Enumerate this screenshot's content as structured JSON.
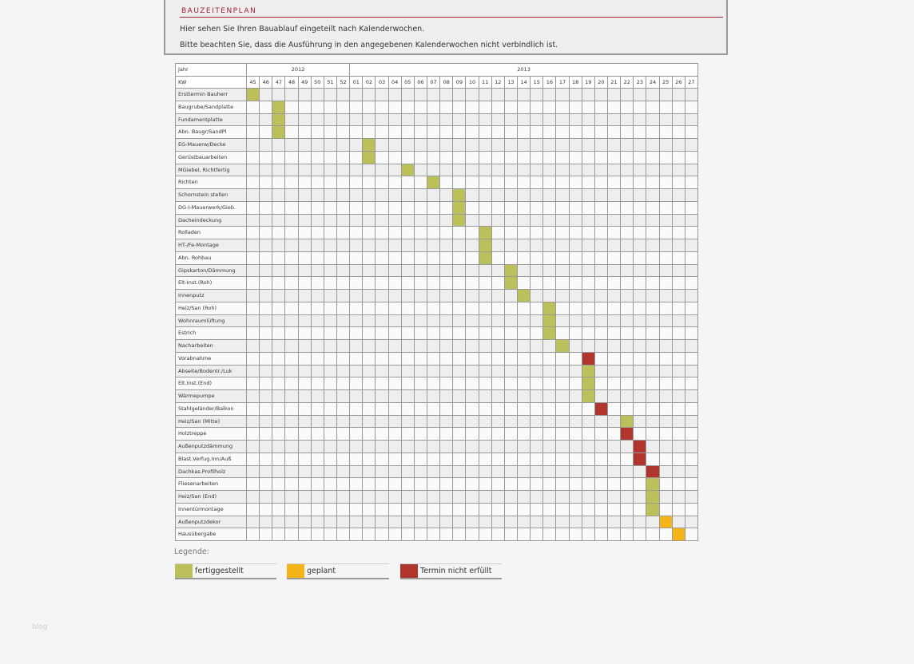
{
  "header": {
    "title": "BAUZEITENPLAN",
    "paragraphs": [
      "Hier sehen Sie Ihren Bauablauf eingeteilt nach Kalenderwochen.",
      "Bitte beachten Sie, dass die Ausführung in den angegebenen Kalenderwochen nicht verbindlich ist."
    ]
  },
  "table": {
    "corner_year": "Jahr",
    "corner_week": "KW",
    "years": [
      {
        "label": "2012",
        "weeks": [
          "45",
          "46",
          "47",
          "48",
          "49",
          "50",
          "51",
          "52"
        ]
      },
      {
        "label": "2013",
        "weeks": [
          "01",
          "02",
          "03",
          "04",
          "05",
          "06",
          "07",
          "08",
          "09",
          "10",
          "11",
          "12",
          "13",
          "14",
          "15",
          "16",
          "17",
          "18",
          "19",
          "20",
          "21",
          "22",
          "23",
          "24",
          "25",
          "26",
          "27"
        ]
      }
    ],
    "rows": [
      {
        "label": "Ersttermin Bauherr",
        "week": "45",
        "status": "fertiggestellt"
      },
      {
        "label": "Baugrube/Sandplatte",
        "week": "47",
        "status": "fertiggestellt"
      },
      {
        "label": "Fundamentplatte",
        "week": "47",
        "status": "fertiggestellt"
      },
      {
        "label": "Abn. Baugr/SandPl",
        "week": "47",
        "status": "fertiggestellt"
      },
      {
        "label": "EG-Mauerw/Decke",
        "week": "02",
        "status": "fertiggestellt"
      },
      {
        "label": "Gerüstbauarbeiten",
        "week": "02",
        "status": "fertiggestellt"
      },
      {
        "label": "MGiebel, Richtfertig",
        "week": "05",
        "status": "fertiggestellt"
      },
      {
        "label": "Richten",
        "week": "07",
        "status": "fertiggestellt"
      },
      {
        "label": "Schornstein stellen",
        "week": "09",
        "status": "fertiggestellt"
      },
      {
        "label": "DG-I-Mauerwerk/Gieb.",
        "week": "09",
        "status": "fertiggestellt"
      },
      {
        "label": "Dacheindeckung",
        "week": "09",
        "status": "fertiggestellt"
      },
      {
        "label": "Rolladen",
        "week": "11",
        "status": "fertiggestellt"
      },
      {
        "label": "HT-/Fe-Montage",
        "week": "11",
        "status": "fertiggestellt"
      },
      {
        "label": "Abn. Rohbau",
        "week": "11",
        "status": "fertiggestellt"
      },
      {
        "label": "Gipskarton/Dämmung",
        "week": "13",
        "status": "fertiggestellt"
      },
      {
        "label": "Elt-Inst.(Roh)",
        "week": "13",
        "status": "fertiggestellt"
      },
      {
        "label": "Innenputz",
        "week": "14",
        "status": "fertiggestellt"
      },
      {
        "label": "Heiz/San (Roh)",
        "week": "16",
        "status": "fertiggestellt"
      },
      {
        "label": "Wohnraumlüftung",
        "week": "16",
        "status": "fertiggestellt"
      },
      {
        "label": "Estrich",
        "week": "16",
        "status": "fertiggestellt"
      },
      {
        "label": "Nacharbeiten",
        "week": "17",
        "status": "fertiggestellt"
      },
      {
        "label": "Vorabnahme",
        "week": "19",
        "status": "Termin nicht erfüllt"
      },
      {
        "label": "Abseite/Bodentr./Luk",
        "week": "19",
        "status": "fertiggestellt"
      },
      {
        "label": "Elt.Inst.(End)",
        "week": "19",
        "status": "fertiggestellt"
      },
      {
        "label": "Wärmepumpe",
        "week": "19",
        "status": "fertiggestellt"
      },
      {
        "label": "Stahlgeländer/Balkon",
        "week": "20",
        "status": "Termin nicht erfüllt"
      },
      {
        "label": "Heiz/San (Mitte)",
        "week": "22",
        "status": "fertiggestellt"
      },
      {
        "label": "Holztreppe",
        "week": "22",
        "status": "Termin nicht erfüllt"
      },
      {
        "label": "Außenputzdämmung",
        "week": "23",
        "status": "Termin nicht erfüllt"
      },
      {
        "label": "Blast.Verfug.Inn/Auß",
        "week": "23",
        "status": "Termin nicht erfüllt"
      },
      {
        "label": "Dachkas.Profilholz",
        "week": "24",
        "status": "Termin nicht erfüllt"
      },
      {
        "label": "Fliesenarbeiten",
        "week": "24",
        "status": "fertiggestellt"
      },
      {
        "label": "Heiz/San (End)",
        "week": "24",
        "status": "fertiggestellt"
      },
      {
        "label": "Innentürmontage",
        "week": "24",
        "status": "fertiggestellt"
      },
      {
        "label": "Außenputzdekor",
        "week": "25",
        "status": "geplant"
      },
      {
        "label": "Hausübergabe",
        "week": "26",
        "status": "geplant"
      }
    ]
  },
  "legend": {
    "title": "Legende:",
    "items": [
      {
        "label": "fertiggestellt",
        "color": "#bcc05a"
      },
      {
        "label": "geplant",
        "color": "#f4b41a"
      },
      {
        "label": "Termin nicht erfüllt",
        "color": "#b0352c"
      }
    ]
  },
  "watermark": "blog"
}
